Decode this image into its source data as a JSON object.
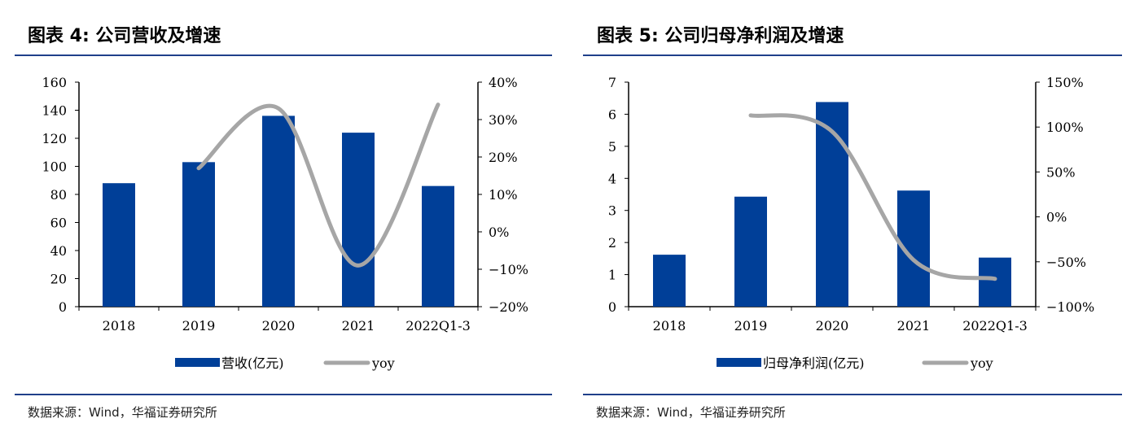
{
  "colors": {
    "bar": "#003f98",
    "line": "#a6a6a6",
    "rule": "#1f3f8a"
  },
  "chart_data": [
    {
      "type": "bar+line",
      "title": "图表 4:  公司营收及增速",
      "categories": [
        "2018",
        "2019",
        "2020",
        "2021",
        "2022Q1-3"
      ],
      "series": [
        {
          "name": "营收(亿元)",
          "type": "bar",
          "axis": "left",
          "values": [
            88,
            103,
            136,
            124,
            86
          ]
        },
        {
          "name": "yoy",
          "type": "line",
          "axis": "right",
          "values": [
            null,
            17,
            33,
            -9,
            34
          ]
        }
      ],
      "ylim": [
        0,
        160
      ],
      "yticks": [
        "0",
        "20",
        "40",
        "60",
        "80",
        "100",
        "120",
        "140",
        "160"
      ],
      "y2lim": [
        -20,
        40
      ],
      "y2ticks": [
        "-20%",
        "-10%",
        "0%",
        "10%",
        "20%",
        "30%",
        "40%"
      ],
      "legend": "bottom",
      "source": "数据来源：Wind，华福证券研究所"
    },
    {
      "type": "bar+line",
      "title": "图表 5:  公司归母净利润及增速",
      "categories": [
        "2018",
        "2019",
        "2020",
        "2021",
        "2022Q1-3"
      ],
      "series": [
        {
          "name": "归母净利润(亿元)",
          "type": "bar",
          "axis": "left",
          "values": [
            1.62,
            3.43,
            6.38,
            3.62,
            1.53
          ]
        },
        {
          "name": "yoy",
          "type": "line",
          "axis": "right",
          "values": [
            null,
            113,
            95,
            -48,
            -69
          ]
        }
      ],
      "ylim": [
        0,
        7
      ],
      "yticks": [
        "0",
        "1",
        "2",
        "3",
        "4",
        "5",
        "6",
        "7"
      ],
      "y2lim": [
        -100,
        150
      ],
      "y2ticks": [
        "-100%",
        "-50%",
        "0%",
        "50%",
        "100%",
        "150%"
      ],
      "legend": "bottom",
      "source": "数据来源：Wind，华福证券研究所"
    }
  ]
}
